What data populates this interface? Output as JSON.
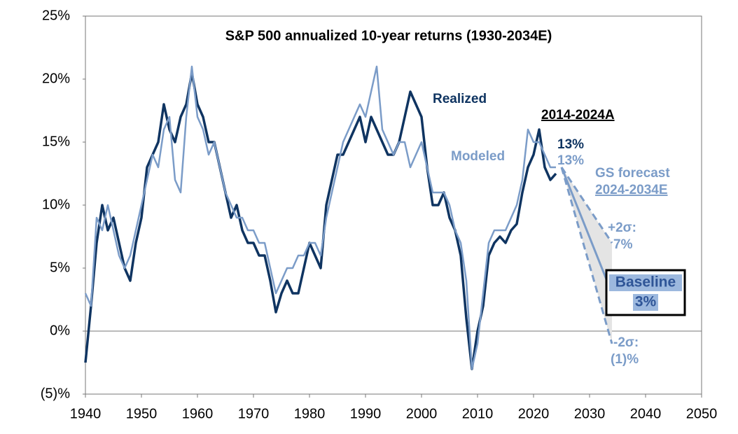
{
  "chart_data": {
    "type": "line",
    "title": "S&P 500 annualized 10-year returns (1930-2034E)",
    "xlim": [
      1940,
      2050
    ],
    "xticks": [
      1940,
      1950,
      1960,
      1970,
      1980,
      1990,
      2000,
      2010,
      2020,
      2030,
      2040,
      2050
    ],
    "ylim": [
      -5,
      25
    ],
    "yticks": [
      {
        "value": -5,
        "label": "(5)%"
      },
      {
        "value": 0,
        "label": "0%"
      },
      {
        "value": 5,
        "label": "5%"
      },
      {
        "value": 10,
        "label": "10%"
      },
      {
        "value": 15,
        "label": "15%"
      },
      {
        "value": 20,
        "label": "20%"
      },
      {
        "value": 25,
        "label": "25%"
      }
    ],
    "zero_line": true,
    "x": [
      1940,
      1941,
      1942,
      1943,
      1944,
      1945,
      1946,
      1947,
      1948,
      1949,
      1950,
      1951,
      1952,
      1953,
      1954,
      1955,
      1956,
      1957,
      1958,
      1959,
      1960,
      1961,
      1962,
      1963,
      1964,
      1965,
      1966,
      1967,
      1968,
      1969,
      1970,
      1971,
      1972,
      1973,
      1974,
      1975,
      1976,
      1977,
      1978,
      1979,
      1980,
      1981,
      1982,
      1983,
      1984,
      1985,
      1986,
      1987,
      1988,
      1989,
      1990,
      1991,
      1992,
      1993,
      1994,
      1995,
      1996,
      1997,
      1998,
      1999,
      2000,
      2001,
      2002,
      2003,
      2004,
      2005,
      2006,
      2007,
      2008,
      2009,
      2010,
      2011,
      2012,
      2013,
      2014,
      2015,
      2016,
      2017,
      2018,
      2019,
      2020,
      2021,
      2022,
      2023,
      2024
    ],
    "series": [
      {
        "name": "Realized",
        "color": "#0f3461",
        "values": [
          -2.5,
          2,
          7,
          10,
          8,
          9,
          7,
          5,
          4,
          7,
          9,
          13,
          14,
          15,
          18,
          16,
          15,
          17,
          18,
          20.5,
          18,
          17,
          15,
          15,
          13,
          11,
          9,
          10,
          8,
          7,
          7,
          6,
          6,
          4,
          1.5,
          3,
          4,
          3,
          3,
          5,
          7,
          6,
          5,
          10,
          12,
          14,
          14,
          15,
          16,
          17,
          15,
          17,
          16,
          15,
          14,
          14,
          15,
          17,
          19,
          18,
          17,
          13,
          10,
          10,
          11,
          9,
          8,
          6,
          1,
          -3,
          0,
          2,
          6,
          7,
          7.5,
          7,
          8,
          8.5,
          11,
          13,
          14,
          16,
          13,
          12,
          12.5
        ]
      },
      {
        "name": "Modeled",
        "color": "#7b9cc8",
        "values": [
          3,
          2,
          9,
          8,
          10,
          8,
          6,
          5,
          6,
          8,
          10,
          12,
          14,
          13,
          16,
          17,
          12,
          11,
          17,
          21,
          17,
          16,
          14,
          15,
          13,
          11,
          10,
          9,
          9,
          8,
          8,
          7,
          7,
          5,
          3,
          4,
          5,
          5,
          6,
          6,
          7,
          7,
          6,
          9,
          11,
          13,
          15,
          16,
          17,
          18,
          17,
          19,
          21,
          16,
          15,
          14,
          15,
          15,
          13,
          14,
          15,
          13,
          11,
          11,
          11,
          10,
          8,
          7,
          4,
          -3,
          -1,
          3,
          7,
          8,
          8,
          8,
          9,
          10,
          12,
          16,
          15,
          15,
          14,
          13,
          13
        ]
      }
    ],
    "forecast": {
      "x": [
        2025,
        2034
      ],
      "color": "#7b9cc8",
      "fill": "#e4e4e4",
      "baseline": [
        13,
        3
      ],
      "upper": [
        13,
        7
      ],
      "lower": [
        13,
        -1
      ]
    },
    "annotations": {
      "realized": "Realized",
      "modeled": "Modeled",
      "period": "2014-2024A",
      "realized_value": "13%",
      "modeled_value": "13%",
      "forecast_1": "GS forecast",
      "forecast_2": "2024-2034E",
      "upper_1": "+2σ:",
      "upper_2": "7%",
      "baseline_1": "Baseline",
      "baseline_2": "3%",
      "lower_1": "-2σ:",
      "lower_2": "(1)%"
    }
  }
}
